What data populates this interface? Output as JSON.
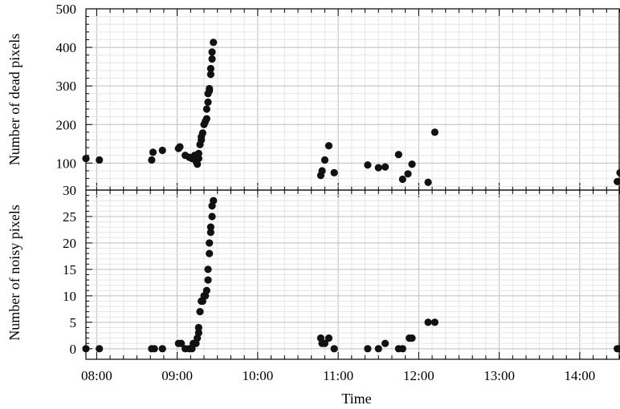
{
  "chart_data": [
    {
      "type": "scatter",
      "name": "dead-pixels",
      "ylabel": "Number of dead pixels",
      "ylim": [
        30,
        500
      ],
      "yticks": [
        "500",
        "400",
        "300",
        "200",
        "100",
        "30"
      ],
      "ytick_values": [
        500,
        400,
        300,
        200,
        100,
        30
      ],
      "xlim": [
        "07:52",
        "14:30"
      ],
      "grid": true,
      "marker_color": "#111111",
      "points": [
        {
          "x": "07:52",
          "y": 112
        },
        {
          "x": "08:02",
          "y": 108
        },
        {
          "x": "08:41",
          "y": 108
        },
        {
          "x": "08:42",
          "y": 128
        },
        {
          "x": "08:49",
          "y": 133
        },
        {
          "x": "09:01",
          "y": 138
        },
        {
          "x": "09:02",
          "y": 142
        },
        {
          "x": "09:06",
          "y": 120
        },
        {
          "x": "09:09",
          "y": 115
        },
        {
          "x": "09:11",
          "y": 112
        },
        {
          "x": "09:13",
          "y": 120
        },
        {
          "x": "09:14",
          "y": 105
        },
        {
          "x": "09:15",
          "y": 97
        },
        {
          "x": "09:16",
          "y": 112
        },
        {
          "x": "09:16",
          "y": 125
        },
        {
          "x": "09:17",
          "y": 148
        },
        {
          "x": "09:18",
          "y": 160
        },
        {
          "x": "09:18",
          "y": 168
        },
        {
          "x": "09:19",
          "y": 178
        },
        {
          "x": "09:20",
          "y": 200
        },
        {
          "x": "09:21",
          "y": 208
        },
        {
          "x": "09:22",
          "y": 215
        },
        {
          "x": "09:22",
          "y": 240
        },
        {
          "x": "09:23",
          "y": 258
        },
        {
          "x": "09:23",
          "y": 280
        },
        {
          "x": "09:24",
          "y": 288
        },
        {
          "x": "09:24",
          "y": 293
        },
        {
          "x": "09:25",
          "y": 330
        },
        {
          "x": "09:25",
          "y": 345
        },
        {
          "x": "09:26",
          "y": 370
        },
        {
          "x": "09:26",
          "y": 388
        },
        {
          "x": "09:27",
          "y": 413
        },
        {
          "x": "10:47",
          "y": 68
        },
        {
          "x": "10:48",
          "y": 80
        },
        {
          "x": "10:50",
          "y": 108
        },
        {
          "x": "10:53",
          "y": 145
        },
        {
          "x": "10:57",
          "y": 75
        },
        {
          "x": "11:22",
          "y": 95
        },
        {
          "x": "11:30",
          "y": 88
        },
        {
          "x": "11:35",
          "y": 90
        },
        {
          "x": "11:45",
          "y": 122
        },
        {
          "x": "11:48",
          "y": 58
        },
        {
          "x": "11:52",
          "y": 72
        },
        {
          "x": "11:55",
          "y": 97
        },
        {
          "x": "12:07",
          "y": 50
        },
        {
          "x": "12:12",
          "y": 180
        },
        {
          "x": "14:28",
          "y": 52
        },
        {
          "x": "14:30",
          "y": 75
        }
      ]
    },
    {
      "type": "scatter",
      "name": "noisy-pixels",
      "ylabel": "Number of noisy pixels",
      "xlabel": "Time",
      "ylim": [
        -2,
        30
      ],
      "yticks": [
        "25",
        "20",
        "15",
        "10",
        "5",
        "0"
      ],
      "ytick_values": [
        25,
        20,
        15,
        10,
        5,
        0
      ],
      "xticks": [
        "08:00",
        "09:00",
        "10:00",
        "11:00",
        "12:00",
        "13:00",
        "14:00"
      ],
      "xlim": [
        "07:52",
        "14:30"
      ],
      "grid": true,
      "marker_color": "#111111",
      "points": [
        {
          "x": "07:52",
          "y": 0
        },
        {
          "x": "08:02",
          "y": 0
        },
        {
          "x": "08:41",
          "y": 0
        },
        {
          "x": "08:43",
          "y": 0
        },
        {
          "x": "08:49",
          "y": 0
        },
        {
          "x": "09:01",
          "y": 1
        },
        {
          "x": "09:03",
          "y": 1
        },
        {
          "x": "09:06",
          "y": 0
        },
        {
          "x": "09:09",
          "y": 0
        },
        {
          "x": "09:11",
          "y": 0
        },
        {
          "x": "09:12",
          "y": 1
        },
        {
          "x": "09:14",
          "y": 1
        },
        {
          "x": "09:15",
          "y": 2
        },
        {
          "x": "09:16",
          "y": 3
        },
        {
          "x": "09:16",
          "y": 4
        },
        {
          "x": "09:17",
          "y": 7
        },
        {
          "x": "09:18",
          "y": 9
        },
        {
          "x": "09:19",
          "y": 9
        },
        {
          "x": "09:20",
          "y": 10
        },
        {
          "x": "09:21",
          "y": 10
        },
        {
          "x": "09:22",
          "y": 11
        },
        {
          "x": "09:23",
          "y": 13
        },
        {
          "x": "09:23",
          "y": 15
        },
        {
          "x": "09:24",
          "y": 18
        },
        {
          "x": "09:24",
          "y": 20
        },
        {
          "x": "09:25",
          "y": 22
        },
        {
          "x": "09:25",
          "y": 23
        },
        {
          "x": "09:26",
          "y": 25
        },
        {
          "x": "09:26",
          "y": 27
        },
        {
          "x": "09:27",
          "y": 28
        },
        {
          "x": "10:47",
          "y": 2
        },
        {
          "x": "10:48",
          "y": 1
        },
        {
          "x": "10:50",
          "y": 1
        },
        {
          "x": "10:53",
          "y": 2
        },
        {
          "x": "10:57",
          "y": 0
        },
        {
          "x": "11:22",
          "y": 0
        },
        {
          "x": "11:30",
          "y": 0
        },
        {
          "x": "11:35",
          "y": 1
        },
        {
          "x": "11:45",
          "y": 0
        },
        {
          "x": "11:48",
          "y": 0
        },
        {
          "x": "11:53",
          "y": 2
        },
        {
          "x": "11:55",
          "y": 2
        },
        {
          "x": "12:07",
          "y": 5
        },
        {
          "x": "12:12",
          "y": 5
        },
        {
          "x": "14:28",
          "y": 0
        },
        {
          "x": "14:30",
          "y": 0
        }
      ]
    }
  ]
}
